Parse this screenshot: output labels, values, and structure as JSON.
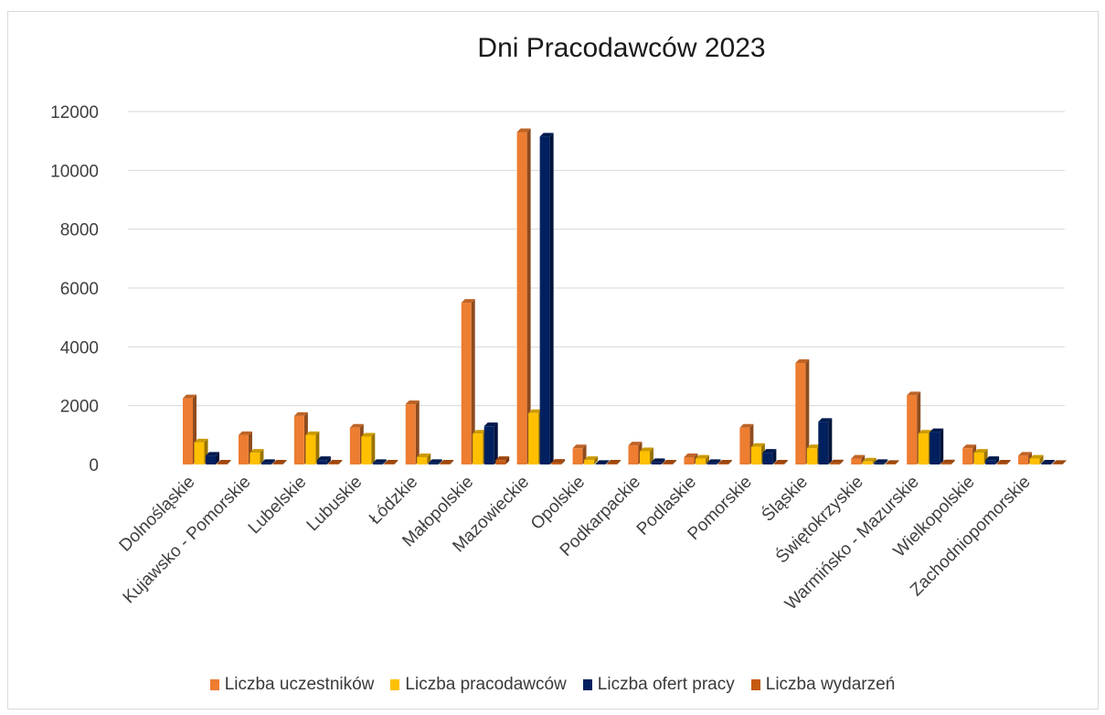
{
  "chart_data": {
    "type": "bar",
    "title": "Dni Pracodawców 2023",
    "xlabel": "",
    "ylabel": "",
    "ylim": [
      0,
      12000
    ],
    "yticks": [
      0,
      2000,
      4000,
      6000,
      8000,
      10000,
      12000
    ],
    "grid": true,
    "legend_position": "bottom",
    "categories": [
      "Dolnośląskie",
      "Kujawsko - Pomorskie",
      "Lubelskie",
      "Lubuskie",
      "Łódzkie",
      "Małopolskie",
      "Mazowieckie",
      "Opolskie",
      "Podkarpackie",
      "Podlaskie",
      "Pomorskie",
      "Śląskie",
      "Świętokrzyskie",
      "Warmińsko - Mazurskie",
      "Wielkopolskie",
      "Zachodniopomorskie"
    ],
    "series": [
      {
        "name": "Liczba uczestników",
        "color": "#ED7D31",
        "values": [
          2250,
          1000,
          1650,
          1250,
          2050,
          5500,
          11300,
          550,
          650,
          250,
          1250,
          3450,
          200,
          2350,
          550,
          300
        ]
      },
      {
        "name": "Liczba pracodawców",
        "color": "#FFC000",
        "values": [
          750,
          400,
          1000,
          950,
          250,
          1050,
          1750,
          150,
          450,
          200,
          600,
          550,
          100,
          1050,
          400,
          200
        ]
      },
      {
        "name": "Liczba ofert pracy",
        "color": "#002060",
        "values": [
          300,
          50,
          150,
          50,
          50,
          1300,
          11150,
          20,
          80,
          50,
          400,
          1450,
          50,
          1100,
          150,
          30
        ]
      },
      {
        "name": "Liczba wydarzeń",
        "color": "#C55A11",
        "values": [
          30,
          30,
          30,
          30,
          30,
          150,
          60,
          30,
          30,
          30,
          30,
          40,
          20,
          40,
          30,
          20
        ]
      }
    ]
  }
}
